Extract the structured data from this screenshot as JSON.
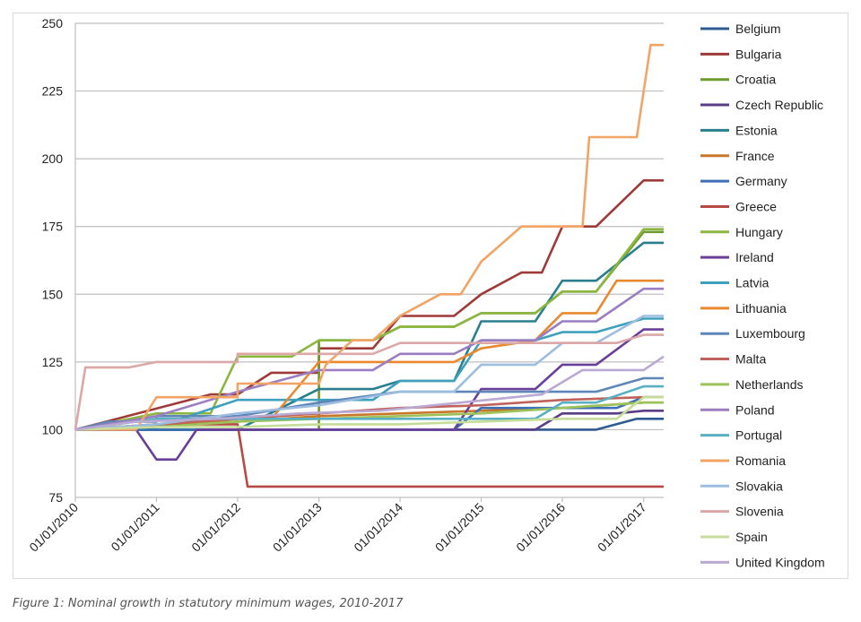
{
  "caption": "Figure 1: Nominal growth in statutory minimum wages, 2010-2017",
  "chart_data": {
    "type": "line",
    "ylim": [
      75,
      250
    ],
    "yticks": [
      75,
      100,
      125,
      150,
      175,
      200,
      225,
      250
    ],
    "xlim": [
      "2010-01-01",
      "2017-04-01"
    ],
    "xticks": [
      {
        "date": "2010-01-01",
        "label": "01/01/2010"
      },
      {
        "date": "2011-01-01",
        "label": "01/01/2011"
      },
      {
        "date": "2012-01-01",
        "label": "01/01/2012"
      },
      {
        "date": "2013-01-01",
        "label": "01/01/2013"
      },
      {
        "date": "2014-01-01",
        "label": "01/01/2014"
      },
      {
        "date": "2015-01-01",
        "label": "01/01/2015"
      },
      {
        "date": "2016-01-01",
        "label": "01/01/2016"
      },
      {
        "date": "2017-01-01",
        "label": "01/01/2017"
      }
    ],
    "grid": "horizontal",
    "legend_position": "right",
    "series": [
      {
        "name": "Belgium",
        "color": "#2f5b93",
        "points": [
          [
            "2010-01-01",
            100
          ],
          [
            "2016-06-01",
            100
          ],
          [
            "2016-12-01",
            104
          ],
          [
            "2017-04-01",
            104
          ]
        ]
      },
      {
        "name": "Bulgaria",
        "color": "#9e3a37",
        "points": [
          [
            "2010-01-01",
            100
          ],
          [
            "2011-09-01",
            113
          ],
          [
            "2012-01-01",
            113
          ],
          [
            "2012-06-01",
            121
          ],
          [
            "2013-01-01",
            121
          ],
          [
            "2013-01-01",
            130
          ],
          [
            "2013-09-01",
            130
          ],
          [
            "2014-01-01",
            142
          ],
          [
            "2014-09-01",
            142
          ],
          [
            "2015-01-01",
            150
          ],
          [
            "2015-07-01",
            158
          ],
          [
            "2015-10-01",
            158
          ],
          [
            "2016-01-01",
            175
          ],
          [
            "2016-06-01",
            175
          ],
          [
            "2017-01-01",
            192
          ],
          [
            "2017-04-01",
            192
          ]
        ]
      },
      {
        "name": "Croatia",
        "color": "#6f9a2c",
        "points": [
          [
            "2010-01-01",
            100
          ],
          [
            "2013-01-01",
            100
          ],
          [
            "2013-01-01",
            133
          ],
          [
            "2013-09-01",
            133
          ],
          [
            "2014-01-01",
            138
          ],
          [
            "2014-09-01",
            138
          ],
          [
            "2015-01-01",
            143
          ],
          [
            "2015-09-01",
            143
          ],
          [
            "2016-01-01",
            151
          ],
          [
            "2016-06-01",
            151
          ],
          [
            "2017-01-01",
            173
          ],
          [
            "2017-04-01",
            173
          ]
        ]
      },
      {
        "name": "Czech Republic",
        "color": "#5a3d85",
        "points": [
          [
            "2010-01-01",
            100
          ],
          [
            "2014-06-01",
            100
          ],
          [
            "2015-09-01",
            100
          ],
          [
            "2016-01-01",
            106
          ],
          [
            "2016-09-01",
            106
          ],
          [
            "2017-01-01",
            107
          ],
          [
            "2017-04-01",
            107
          ]
        ]
      },
      {
        "name": "Estonia",
        "color": "#2a7f8f",
        "points": [
          [
            "2010-01-01",
            100
          ],
          [
            "2012-01-01",
            100
          ],
          [
            "2013-01-01",
            115
          ],
          [
            "2013-09-01",
            115
          ],
          [
            "2014-01-01",
            118
          ],
          [
            "2014-09-01",
            118
          ],
          [
            "2015-01-01",
            140
          ],
          [
            "2015-09-01",
            140
          ],
          [
            "2016-01-01",
            155
          ],
          [
            "2016-06-01",
            155
          ],
          [
            "2017-01-01",
            169
          ],
          [
            "2017-04-01",
            169
          ]
        ]
      },
      {
        "name": "France",
        "color": "#c8772b",
        "points": [
          [
            "2010-01-01",
            100
          ],
          [
            "2011-01-01",
            102
          ],
          [
            "2012-01-01",
            103
          ],
          [
            "2013-01-01",
            105
          ],
          [
            "2014-01-01",
            106
          ],
          [
            "2015-01-01",
            107
          ],
          [
            "2016-01-01",
            108
          ],
          [
            "2017-01-01",
            110
          ],
          [
            "2017-04-01",
            110
          ]
        ]
      },
      {
        "name": "Germany",
        "color": "#3c6fb4",
        "points": [
          [
            "2010-01-01",
            100
          ],
          [
            "2014-09-01",
            100
          ],
          [
            "2015-01-01",
            108
          ],
          [
            "2016-09-01",
            108
          ],
          [
            "2017-01-01",
            112
          ],
          [
            "2017-04-01",
            112
          ]
        ]
      },
      {
        "name": "Greece",
        "color": "#b84a44",
        "points": [
          [
            "2010-01-01",
            100
          ],
          [
            "2011-07-01",
            102
          ],
          [
            "2012-01-01",
            102
          ],
          [
            "2012-02-15",
            79
          ],
          [
            "2017-04-01",
            79
          ]
        ]
      },
      {
        "name": "Hungary",
        "color": "#8bb640",
        "points": [
          [
            "2010-01-01",
            100
          ],
          [
            "2011-01-01",
            106
          ],
          [
            "2011-09-01",
            106
          ],
          [
            "2012-01-01",
            127
          ],
          [
            "2012-09-01",
            127
          ],
          [
            "2013-01-01",
            133
          ],
          [
            "2013-09-01",
            133
          ],
          [
            "2014-01-01",
            138
          ],
          [
            "2014-09-01",
            138
          ],
          [
            "2015-01-01",
            143
          ],
          [
            "2015-09-01",
            143
          ],
          [
            "2016-01-01",
            151
          ],
          [
            "2016-06-01",
            151
          ],
          [
            "2017-01-01",
            174
          ],
          [
            "2017-04-01",
            174
          ]
        ]
      },
      {
        "name": "Ireland",
        "color": "#6a3f99",
        "points": [
          [
            "2010-01-01",
            100
          ],
          [
            "2010-10-01",
            100
          ],
          [
            "2011-01-01",
            89
          ],
          [
            "2011-04-01",
            89
          ],
          [
            "2011-07-01",
            100
          ],
          [
            "2014-09-01",
            100
          ],
          [
            "2015-01-01",
            115
          ],
          [
            "2015-09-01",
            115
          ],
          [
            "2016-01-01",
            124
          ],
          [
            "2016-06-01",
            124
          ],
          [
            "2017-01-01",
            137
          ],
          [
            "2017-04-01",
            137
          ]
        ]
      },
      {
        "name": "Latvia",
        "color": "#3fa0bd",
        "points": [
          [
            "2010-01-01",
            100
          ],
          [
            "2011-01-01",
            101
          ],
          [
            "2012-01-01",
            111
          ],
          [
            "2013-01-01",
            111
          ],
          [
            "2013-09-01",
            111
          ],
          [
            "2014-01-01",
            118
          ],
          [
            "2014-09-01",
            118
          ],
          [
            "2015-01-01",
            133
          ],
          [
            "2015-09-01",
            133
          ],
          [
            "2016-01-01",
            136
          ],
          [
            "2016-06-01",
            136
          ],
          [
            "2017-01-01",
            141
          ],
          [
            "2017-04-01",
            141
          ]
        ]
      },
      {
        "name": "Lithuania",
        "color": "#e8892f",
        "points": [
          [
            "2010-01-01",
            100
          ],
          [
            "2011-01-01",
            102
          ],
          [
            "2012-01-01",
            104
          ],
          [
            "2012-06-01",
            104
          ],
          [
            "2013-01-01",
            125
          ],
          [
            "2014-09-01",
            125
          ],
          [
            "2015-01-01",
            130
          ],
          [
            "2015-09-01",
            133
          ],
          [
            "2016-01-01",
            143
          ],
          [
            "2016-06-01",
            143
          ],
          [
            "2016-09-01",
            155
          ],
          [
            "2017-04-01",
            155
          ]
        ]
      },
      {
        "name": "Luxembourg",
        "color": "#5f86b8",
        "points": [
          [
            "2010-01-01",
            100
          ],
          [
            "2010-06-01",
            103
          ],
          [
            "2011-01-01",
            103
          ],
          [
            "2011-01-01",
            105
          ],
          [
            "2012-01-01",
            105
          ],
          [
            "2013-01-01",
            110
          ],
          [
            "2014-01-01",
            114
          ],
          [
            "2015-01-01",
            114
          ],
          [
            "2016-06-01",
            114
          ],
          [
            "2017-01-01",
            119
          ],
          [
            "2017-04-01",
            119
          ]
        ]
      },
      {
        "name": "Malta",
        "color": "#c0625c",
        "points": [
          [
            "2010-01-01",
            100
          ],
          [
            "2011-01-01",
            102
          ],
          [
            "2012-01-01",
            104
          ],
          [
            "2013-01-01",
            106
          ],
          [
            "2014-01-01",
            108
          ],
          [
            "2015-01-01",
            109
          ],
          [
            "2016-01-01",
            111
          ],
          [
            "2017-01-01",
            112
          ],
          [
            "2017-04-01",
            112
          ]
        ]
      },
      {
        "name": "Netherlands",
        "color": "#9cc25a",
        "points": [
          [
            "2010-01-01",
            100
          ],
          [
            "2011-01-01",
            101
          ],
          [
            "2012-01-01",
            103
          ],
          [
            "2013-01-01",
            104
          ],
          [
            "2014-01-01",
            105
          ],
          [
            "2015-01-01",
            106
          ],
          [
            "2016-01-01",
            108
          ],
          [
            "2017-01-01",
            110
          ],
          [
            "2017-04-01",
            110
          ]
        ]
      },
      {
        "name": "Poland",
        "color": "#9b7ec2",
        "points": [
          [
            "2010-01-01",
            100
          ],
          [
            "2011-01-01",
            105
          ],
          [
            "2012-01-01",
            114
          ],
          [
            "2013-01-01",
            122
          ],
          [
            "2013-09-01",
            122
          ],
          [
            "2014-01-01",
            128
          ],
          [
            "2014-09-01",
            128
          ],
          [
            "2015-01-01",
            133
          ],
          [
            "2015-09-01",
            133
          ],
          [
            "2016-01-01",
            140
          ],
          [
            "2016-06-01",
            140
          ],
          [
            "2017-01-01",
            152
          ],
          [
            "2017-04-01",
            152
          ]
        ]
      },
      {
        "name": "Portugal",
        "color": "#59b0c4",
        "points": [
          [
            "2010-01-01",
            100
          ],
          [
            "2011-01-01",
            104
          ],
          [
            "2011-09-01",
            104
          ],
          [
            "2012-01-01",
            104
          ],
          [
            "2013-01-01",
            104
          ],
          [
            "2014-09-01",
            104
          ],
          [
            "2015-01-01",
            104
          ],
          [
            "2015-09-01",
            104
          ],
          [
            "2016-01-01",
            110
          ],
          [
            "2016-06-01",
            110
          ],
          [
            "2017-01-01",
            116
          ],
          [
            "2017-04-01",
            116
          ]
        ]
      },
      {
        "name": "Romania",
        "color": "#f2a465",
        "points": [
          [
            "2010-01-01",
            100
          ],
          [
            "2010-10-01",
            100
          ],
          [
            "2011-01-01",
            112
          ],
          [
            "2012-01-01",
            112
          ],
          [
            "2012-01-01",
            117
          ],
          [
            "2013-01-01",
            117
          ],
          [
            "2013-02-01",
            124
          ],
          [
            "2013-06-01",
            133
          ],
          [
            "2013-09-01",
            133
          ],
          [
            "2014-01-01",
            142
          ],
          [
            "2014-07-01",
            150
          ],
          [
            "2014-10-01",
            150
          ],
          [
            "2015-01-01",
            162
          ],
          [
            "2015-07-01",
            175
          ],
          [
            "2016-01-01",
            175
          ],
          [
            "2016-04-01",
            175
          ],
          [
            "2016-05-01",
            208
          ],
          [
            "2016-12-01",
            208
          ],
          [
            "2017-02-01",
            242
          ],
          [
            "2017-04-01",
            242
          ]
        ]
      },
      {
        "name": "Slovakia",
        "color": "#9dbde0",
        "points": [
          [
            "2010-01-01",
            100
          ],
          [
            "2011-01-01",
            102
          ],
          [
            "2012-01-01",
            106
          ],
          [
            "2013-01-01",
            109
          ],
          [
            "2014-01-01",
            114
          ],
          [
            "2014-09-01",
            114
          ],
          [
            "2015-01-01",
            124
          ],
          [
            "2015-09-01",
            124
          ],
          [
            "2016-01-01",
            132
          ],
          [
            "2016-06-01",
            132
          ],
          [
            "2017-01-01",
            142
          ],
          [
            "2017-04-01",
            142
          ]
        ]
      },
      {
        "name": "Slovenia",
        "color": "#dca7a7",
        "points": [
          [
            "2010-01-01",
            100
          ],
          [
            "2010-02-15",
            123
          ],
          [
            "2010-09-01",
            123
          ],
          [
            "2011-01-01",
            125
          ],
          [
            "2012-01-01",
            125
          ],
          [
            "2012-01-01",
            128
          ],
          [
            "2013-09-01",
            128
          ],
          [
            "2014-01-01",
            132
          ],
          [
            "2016-09-01",
            132
          ],
          [
            "2017-01-01",
            135
          ],
          [
            "2017-04-01",
            135
          ]
        ]
      },
      {
        "name": "Spain",
        "color": "#c6dd9a",
        "points": [
          [
            "2010-01-01",
            100
          ],
          [
            "2011-01-01",
            101
          ],
          [
            "2012-01-01",
            101
          ],
          [
            "2013-01-01",
            102
          ],
          [
            "2014-01-01",
            102
          ],
          [
            "2015-01-01",
            103
          ],
          [
            "2016-01-01",
            104
          ],
          [
            "2016-09-01",
            104
          ],
          [
            "2017-01-01",
            112
          ],
          [
            "2017-04-01",
            112
          ]
        ]
      },
      {
        "name": "United Kingdom",
        "color": "#b9a9d3",
        "points": [
          [
            "2010-01-01",
            100
          ],
          [
            "2010-10-01",
            103
          ],
          [
            "2011-10-01",
            104
          ],
          [
            "2012-10-01",
            106
          ],
          [
            "2013-10-01",
            107
          ],
          [
            "2014-10-01",
            110
          ],
          [
            "2015-10-01",
            113
          ],
          [
            "2016-04-01",
            122
          ],
          [
            "2016-09-01",
            122
          ],
          [
            "2017-01-01",
            122
          ],
          [
            "2017-04-01",
            127
          ]
        ]
      }
    ]
  }
}
